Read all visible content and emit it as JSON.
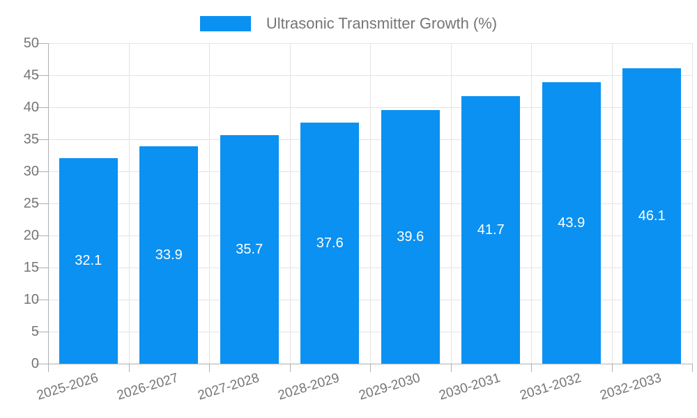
{
  "chart_data": {
    "type": "bar",
    "title": "",
    "legend": {
      "position": "top-center",
      "entries": [
        {
          "label": "Ultrasonic Transmitter Growth (%)",
          "color": "#0a91f2"
        }
      ]
    },
    "categories": [
      "2025-2026",
      "2026-2027",
      "2027-2028",
      "2028-2029",
      "2029-2030",
      "2030-2031",
      "2031-2032",
      "2032-2033"
    ],
    "series": [
      {
        "name": "Ultrasonic Transmitter Growth (%)",
        "values": [
          32.1,
          33.9,
          35.7,
          37.6,
          39.6,
          41.7,
          43.9,
          46.1
        ]
      }
    ],
    "value_labels": [
      "32.1",
      "33.9",
      "35.7",
      "37.6",
      "39.6",
      "41.7",
      "43.9",
      "46.1"
    ],
    "value_labels_position": "inside-center",
    "xlabel": "",
    "ylabel": "",
    "ylim": [
      0,
      50
    ],
    "yticks": [
      0,
      5,
      10,
      15,
      20,
      25,
      30,
      35,
      40,
      45,
      50
    ],
    "grid": true,
    "x_gridlines_at_category_boundaries": true,
    "x_tick_label_rotation_deg": -17
  },
  "colors": {
    "bar": "#0a91f2",
    "gridline": "#e3e3e3",
    "axis_line": "#b0b0b0",
    "tick_label": "#757575",
    "legend_text": "#757575",
    "value_label": "#ffffff",
    "background": "#ffffff"
  }
}
